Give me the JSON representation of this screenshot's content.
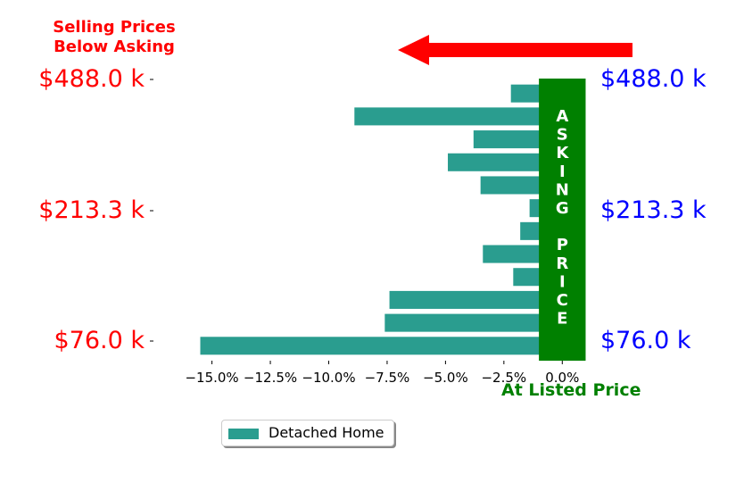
{
  "annotations": {
    "below_asking": "Selling Prices\nBelow Asking",
    "at_listed": "At Listed Price",
    "asking_band_text": "ASKING PRICE"
  },
  "price_labels": {
    "left": [
      "$488.0 k",
      "$213.3 k",
      "$76.0 k"
    ],
    "right": [
      "$488.0 k",
      "$213.3 k",
      "$76.0 k"
    ]
  },
  "legend": {
    "label": "Detached Home"
  },
  "colors": {
    "bar": "#2a9d8f",
    "band": "#008000",
    "arrow": "#ff0000",
    "left_labels": "#ff0000",
    "right_labels": "#0000ff",
    "green_text": "#008000"
  },
  "chart_data": {
    "type": "bar",
    "orientation": "horizontal",
    "series": [
      {
        "name": "Detached Home",
        "values": [
          -2.2,
          -8.9,
          -3.8,
          -4.9,
          -3.5,
          -1.4,
          -1.8,
          -3.4,
          -2.1,
          -7.4,
          -7.6,
          -15.5
        ]
      }
    ],
    "xlim": [
      -17.2,
      0.6
    ],
    "xticks": [
      -15.0,
      -12.5,
      -10.0,
      -7.5,
      -5.0,
      -2.5,
      0.0
    ],
    "xtick_labels": [
      "−15.0%",
      "−12.5%",
      "−10.0%",
      "−7.5%",
      "−5.0%",
      "−2.5%",
      "0.0%"
    ],
    "band": {
      "from": -1.0,
      "to": 1.0,
      "label": "ASKING PRICE"
    },
    "xlabel": "",
    "ylabel": "",
    "grid": false
  }
}
